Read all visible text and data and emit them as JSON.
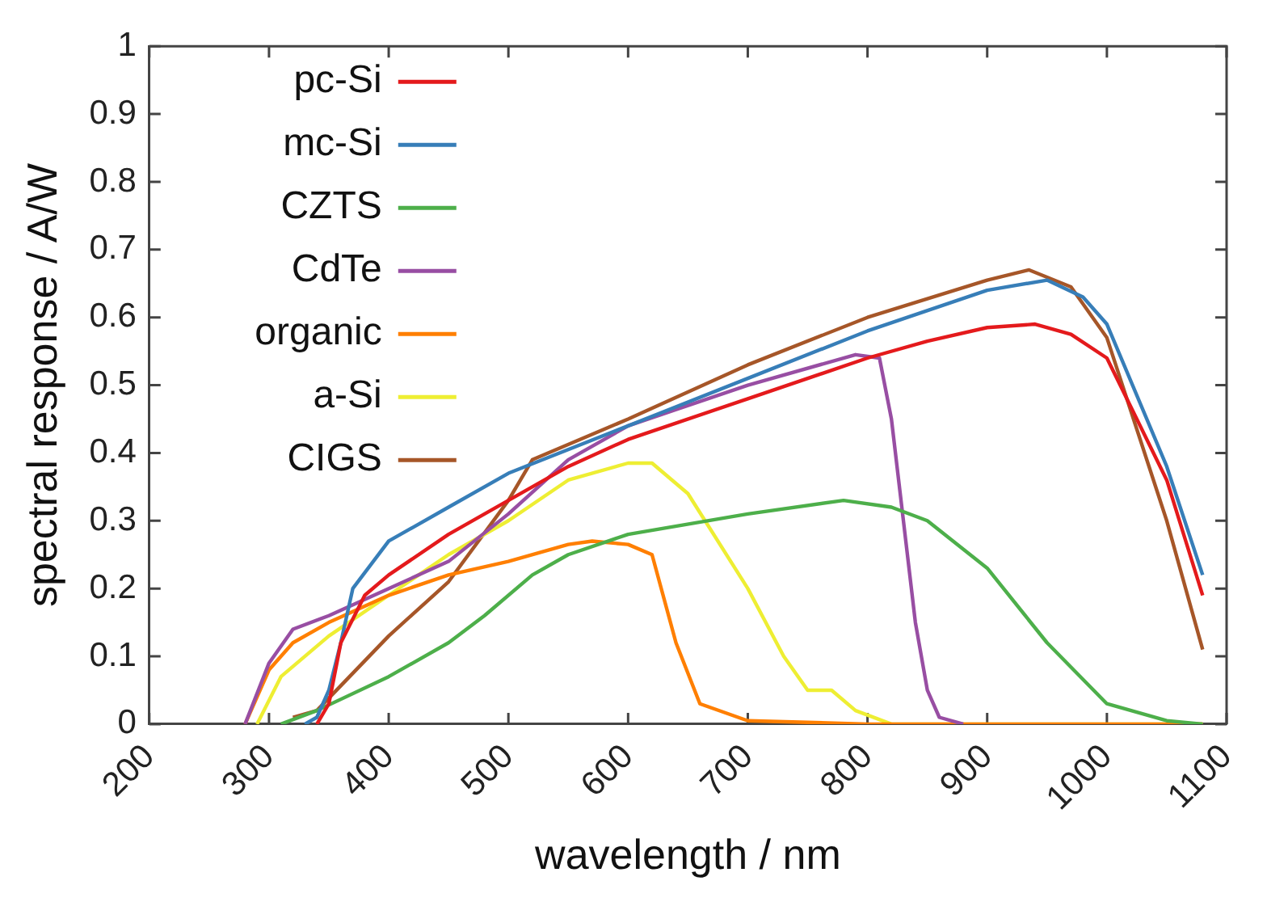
{
  "chart_data": {
    "type": "line",
    "xlabel": "wavelength / nm",
    "ylabel": "spectral response / A/W",
    "xlim": [
      200,
      1100
    ],
    "ylim": [
      0,
      1
    ],
    "xticks": [
      200,
      300,
      400,
      500,
      600,
      700,
      800,
      900,
      1000,
      1100
    ],
    "yticks": [
      0,
      0.1,
      0.2,
      0.3,
      0.4,
      0.5,
      0.6,
      0.7,
      0.8,
      0.9,
      1
    ],
    "grid": false,
    "legend": "top left",
    "marker": "none",
    "line_style": "solid",
    "series": [
      {
        "name": "pc-Si",
        "color": "#e41a1c",
        "x": [
          340,
          350,
          360,
          380,
          400,
          450,
          500,
          550,
          600,
          700,
          800,
          850,
          900,
          940,
          970,
          1000,
          1050,
          1080
        ],
        "values": [
          0,
          0.03,
          0.12,
          0.19,
          0.22,
          0.28,
          0.33,
          0.38,
          0.42,
          0.48,
          0.54,
          0.565,
          0.585,
          0.59,
          0.575,
          0.54,
          0.36,
          0.19
        ]
      },
      {
        "name": "mc-Si",
        "color": "#377eb8",
        "x": [
          330,
          340,
          350,
          360,
          370,
          400,
          450,
          500,
          600,
          700,
          800,
          900,
          950,
          980,
          1000,
          1050,
          1080
        ],
        "values": [
          0,
          0.01,
          0.05,
          0.12,
          0.2,
          0.27,
          0.32,
          0.37,
          0.44,
          0.51,
          0.58,
          0.64,
          0.655,
          0.63,
          0.59,
          0.38,
          0.22
        ]
      },
      {
        "name": "CZTS",
        "color": "#4daf4a",
        "x": [
          310,
          340,
          400,
          450,
          480,
          520,
          550,
          600,
          700,
          780,
          820,
          850,
          900,
          950,
          1000,
          1050,
          1080
        ],
        "values": [
          0,
          0.02,
          0.07,
          0.12,
          0.16,
          0.22,
          0.25,
          0.28,
          0.31,
          0.33,
          0.32,
          0.3,
          0.23,
          0.12,
          0.03,
          0.005,
          0
        ]
      },
      {
        "name": "CdTe",
        "color": "#984ea3",
        "x": [
          280,
          300,
          320,
          350,
          400,
          450,
          500,
          550,
          600,
          700,
          790,
          810,
          820,
          830,
          840,
          850,
          860,
          880
        ],
        "values": [
          0,
          0.09,
          0.14,
          0.16,
          0.2,
          0.24,
          0.31,
          0.39,
          0.44,
          0.5,
          0.545,
          0.54,
          0.45,
          0.3,
          0.15,
          0.05,
          0.01,
          0
        ]
      },
      {
        "name": "organic",
        "color": "#ff7f00",
        "x": [
          280,
          300,
          320,
          350,
          400,
          450,
          500,
          550,
          570,
          600,
          620,
          640,
          660,
          700,
          800,
          1080
        ],
        "values": [
          0,
          0.08,
          0.12,
          0.15,
          0.19,
          0.22,
          0.24,
          0.265,
          0.27,
          0.265,
          0.25,
          0.12,
          0.03,
          0.005,
          0,
          0
        ]
      },
      {
        "name": "a-Si",
        "color": "#eeee33",
        "x": [
          290,
          310,
          350,
          400,
          450,
          500,
          550,
          600,
          620,
          650,
          700,
          730,
          750,
          770,
          790,
          820,
          1080
        ],
        "values": [
          0,
          0.07,
          0.13,
          0.19,
          0.25,
          0.3,
          0.36,
          0.385,
          0.385,
          0.34,
          0.2,
          0.1,
          0.05,
          0.05,
          0.02,
          0,
          0
        ]
      },
      {
        "name": "CIGS",
        "color": "#a65628",
        "x": [
          320,
          340,
          400,
          450,
          500,
          520,
          600,
          700,
          800,
          900,
          935,
          970,
          1000,
          1050,
          1080
        ],
        "values": [
          0.01,
          0.02,
          0.13,
          0.21,
          0.33,
          0.39,
          0.45,
          0.53,
          0.6,
          0.655,
          0.67,
          0.645,
          0.57,
          0.3,
          0.11
        ]
      }
    ]
  }
}
